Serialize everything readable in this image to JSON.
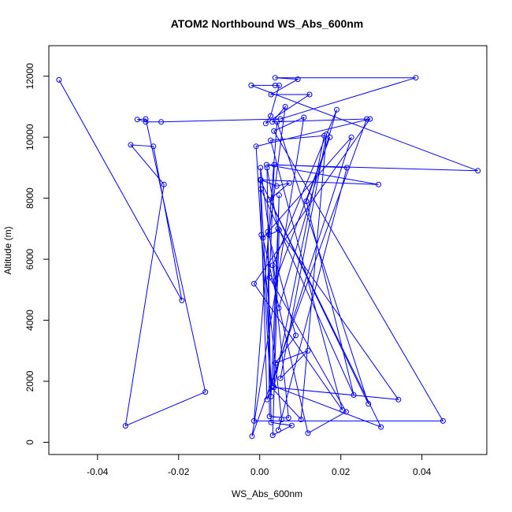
{
  "chart_data": {
    "type": "line",
    "title": "ATOM2 Northbound WS_Abs_600nm",
    "xlabel": "WS_Abs_600nm",
    "ylabel": "Altitude (m)",
    "xlim": [
      -0.052,
      0.056
    ],
    "ylim": [
      -400,
      13000
    ],
    "x_ticks": [
      -0.04,
      -0.02,
      0.0,
      0.02,
      0.04
    ],
    "x_tick_labels": [
      "-0.04",
      "-0.02",
      "0.00",
      "0.02",
      "0.04"
    ],
    "y_ticks": [
      0,
      2000,
      4000,
      6000,
      8000,
      10000,
      12000
    ],
    "y_tick_labels": [
      "0",
      "2000",
      "4000",
      "6000",
      "8000",
      "10000",
      "12000"
    ],
    "grid": false,
    "color": "#0000ff",
    "series": [
      {
        "x": [
          -0.0495,
          -0.0192,
          -0.0262,
          -0.0318,
          -0.0236,
          -0.0331,
          -0.0134,
          -0.0281,
          -0.0302,
          -0.0281,
          -0.0243,
          0.0051,
          0.0385,
          0.0038,
          0.0094,
          0.0028,
          0.0123,
          0.0015,
          0.0027,
          0.0048,
          0.0038,
          -0.0021,
          0.0538,
          0.0017,
          0.0293,
          0.0003,
          0.0042,
          0.0073,
          0.0024,
          0.0268,
          0.0043,
          -0.0014,
          0.0452,
          0.0035,
          0.0109,
          -0.0019,
          0.0264,
          0.0031,
          0.0063,
          0.0023,
          0.0048,
          0.0032,
          0.0079,
          0.0028,
          0.0018,
          0.0045,
          0.0342,
          0.0035,
          0.0159,
          0.0027,
          0.0204,
          -0.0014,
          0.0272,
          -0.0009,
          0.0028,
          0.0048,
          0.0033,
          0.0299,
          0.0001,
          0.0018,
          0.0226,
          0.0008,
          0.0119,
          0.0213,
          0.0024,
          0.0036,
          0.0215,
          0.0046,
          0.0054,
          0.0004,
          0.0002,
          0.0039,
          0.0173,
          0.0115,
          0.0232,
          0.0003,
          0.0029,
          0.0102,
          0.0165,
          0.0051,
          0.0119,
          0.0039,
          0.0089,
          0.002,
          0.0024,
          0.0071,
          0.0032,
          0.019,
          0.0047
        ],
        "y": [
          11880,
          4650,
          9700,
          9750,
          8450,
          540,
          1650,
          10600,
          10580,
          10500,
          10500,
          10600,
          11950,
          11950,
          11900,
          11400,
          11400,
          10450,
          10700,
          11700,
          11700,
          11700,
          8900,
          9100,
          8450,
          8600,
          8400,
          8500,
          7950,
          1260,
          10500,
          700,
          700,
          10200,
          10650,
          200,
          10600,
          10500,
          11000,
          6800,
          6950,
          230,
          550,
          650,
          9000,
          7000,
          1400,
          1800,
          10050,
          9900,
          1050,
          5200,
          10600,
          9700,
          1500,
          8100,
          1850,
          500,
          8600,
          1400,
          10000,
          6700,
          300,
          1000,
          5400,
          9100,
          9000,
          400,
          750,
          6800,
          9000,
          5300,
          10000,
          7900,
          1550,
          8300,
          1800,
          750,
          10100,
          2100,
          3000,
          2600,
          3500,
          6900,
          850,
          800,
          5800,
          10900,
          4400
        ]
      }
    ]
  }
}
